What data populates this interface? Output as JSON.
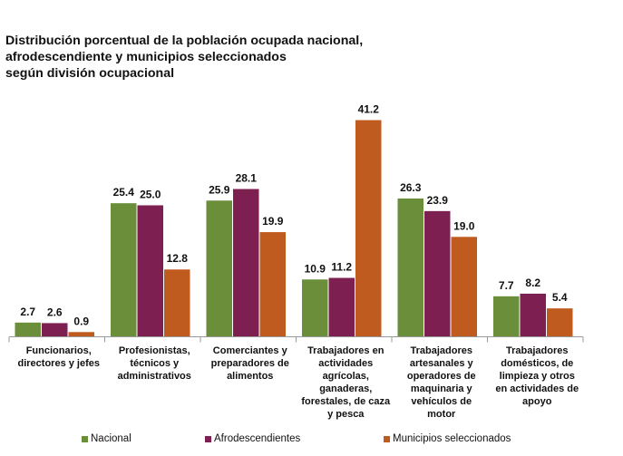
{
  "title": {
    "line1": "Distribución porcentual de la población ocupada nacional,",
    "line2": "afrodescendiente y municipios seleccionados",
    "line3": "según división ocupacional"
  },
  "colors": {
    "nacional": "#6b8e3a",
    "afro": "#7e1f52",
    "municipios": "#c05b20",
    "axis": "#999999"
  },
  "chart_data": {
    "type": "bar",
    "title": "Distribución porcentual de la población ocupada nacional, afrodescendiente y municipios seleccionados según división ocupacional",
    "xlabel": "",
    "ylabel": "",
    "ylim": [
      0,
      45
    ],
    "grid": false,
    "legend_position": "bottom",
    "categories": [
      [
        "Funcionarios,",
        "directores y jefes"
      ],
      [
        "Profesionistas,",
        "técnicos y",
        "administrativos"
      ],
      [
        "Comerciantes y",
        "preparadores de",
        "alimentos"
      ],
      [
        "Trabajadores en",
        "actividades",
        "agrícolas,",
        "ganaderas,",
        "forestales, de caza",
        "y pesca"
      ],
      [
        "Trabajadores",
        "artesanales y",
        "operadores de",
        "maquinaria y",
        "vehículos de",
        "motor"
      ],
      [
        "Trabajadores",
        "domésticos, de",
        "limpieza y otros",
        "en actividades de",
        "apoyo"
      ]
    ],
    "series": [
      {
        "name": "Nacional",
        "color": "#6b8e3a",
        "values": [
          2.7,
          25.4,
          25.9,
          10.9,
          26.3,
          7.7
        ]
      },
      {
        "name": "Afrodescendientes",
        "color": "#7e1f52",
        "values": [
          2.6,
          25.0,
          28.1,
          11.2,
          23.9,
          8.2
        ]
      },
      {
        "name": "Municipios seleccionados",
        "color": "#c05b20",
        "values": [
          0.9,
          12.8,
          19.9,
          41.2,
          19.0,
          5.4
        ]
      }
    ]
  }
}
